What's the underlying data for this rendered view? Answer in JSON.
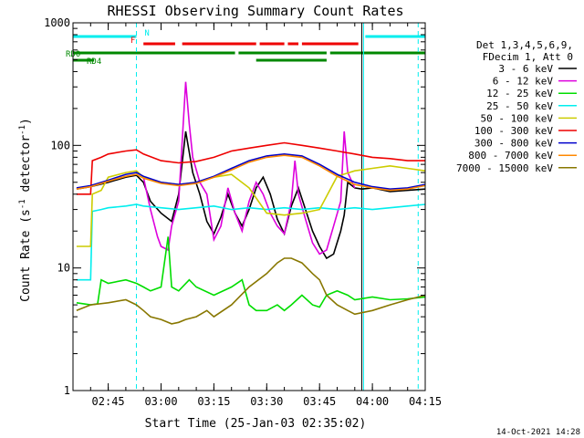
{
  "chart_data": {
    "type": "line",
    "title": "RHESSI Observing Summary Count Rates",
    "xlabel": "Start Time (25-Jan-03 02:35:02)",
    "ylabel": "Count Rate (s",
    "ylabel_sup": "-1",
    "ylabel_tail": " detector",
    "ylabel_end": ")",
    "yscale": "log",
    "ylim": [
      1,
      1000
    ],
    "xlim_min": [
      0,
      100
    ],
    "x_ticks": [
      {
        "min": 10,
        "label": "02:45"
      },
      {
        "min": 25,
        "label": "03:00"
      },
      {
        "min": 40,
        "label": "03:15"
      },
      {
        "min": 55,
        "label": "03:30"
      },
      {
        "min": 70,
        "label": "03:45"
      },
      {
        "min": 85,
        "label": "04:00"
      },
      {
        "min": 100,
        "label": "04:15"
      }
    ],
    "y_ticks": [
      {
        "value": 1,
        "label": "1"
      },
      {
        "value": 10,
        "label": "10"
      },
      {
        "value": 100,
        "label": "100"
      },
      {
        "value": 1000,
        "label": "1000"
      }
    ],
    "legend_header": [
      "Det 1,3,4,5,6,9,",
      "FDecim 1, Att 0"
    ],
    "legend_position": "top-right outside",
    "series": [
      {
        "name": "3 - 6 keV",
        "color": "#000000",
        "x": [
          1,
          5,
          10,
          15,
          18,
          20,
          22,
          25,
          28,
          30,
          32,
          34,
          36,
          38,
          40,
          42,
          44,
          46,
          48,
          50,
          52,
          54,
          56,
          58,
          60,
          62,
          64,
          66,
          68,
          70,
          72,
          74,
          76,
          77,
          78,
          80,
          82,
          85,
          90,
          95,
          100
        ],
        "values": [
          44,
          46,
          50,
          55,
          57,
          50,
          35,
          28,
          24,
          40,
          130,
          60,
          40,
          24,
          19,
          26,
          40,
          28,
          22,
          30,
          45,
          55,
          40,
          25,
          19,
          32,
          45,
          30,
          20,
          15,
          12,
          13,
          20,
          27,
          50,
          45,
          44,
          45,
          42,
          43,
          44
        ]
      },
      {
        "name": "6 - 12 keV",
        "color": "#dd00dd",
        "x": [
          20,
          22,
          24,
          25,
          27,
          28,
          30,
          32,
          33,
          34,
          36,
          38,
          40,
          42,
          44,
          46,
          48,
          50,
          52,
          54,
          56,
          58,
          60,
          62,
          63,
          64,
          66,
          68,
          70,
          72,
          74,
          76,
          77,
          78,
          80
        ],
        "values": [
          55,
          30,
          18,
          15,
          14,
          22,
          35,
          330,
          150,
          80,
          50,
          40,
          17,
          22,
          45,
          28,
          20,
          35,
          50,
          40,
          28,
          22,
          19,
          35,
          75,
          40,
          25,
          16,
          13,
          14,
          22,
          35,
          130,
          60,
          45
        ]
      },
      {
        "name": "12 - 25 keV",
        "color": "#00dd00",
        "x": [
          1,
          5,
          7,
          8,
          10,
          15,
          18,
          20,
          22,
          25,
          27,
          28,
          30,
          33,
          35,
          40,
          45,
          48,
          50,
          52,
          55,
          58,
          60,
          62,
          65,
          68,
          70,
          72,
          75,
          78,
          80,
          85,
          90,
          95,
          100
        ],
        "values": [
          5.2,
          5.0,
          5.1,
          8,
          7.5,
          8,
          7.5,
          7,
          6.5,
          7,
          18,
          7,
          6.5,
          8,
          7,
          6,
          7,
          8,
          5,
          4.5,
          4.5,
          5,
          4.5,
          5,
          6,
          5,
          4.8,
          6,
          6.5,
          6,
          5.5,
          5.8,
          5.5,
          5.6,
          5.8
        ]
      },
      {
        "name": "25 - 50 keV",
        "color": "#00eeee",
        "x": [
          1,
          5,
          5.5,
          8,
          10,
          15,
          18,
          20,
          25,
          30,
          35,
          40,
          45,
          50,
          55,
          60,
          65,
          70,
          75,
          80,
          85,
          90,
          95,
          100
        ],
        "values": [
          8,
          8,
          29,
          30,
          31,
          32,
          33,
          32,
          31,
          30,
          31,
          32,
          30,
          31,
          30,
          31,
          30,
          31,
          30,
          31,
          30,
          31,
          32,
          33
        ]
      },
      {
        "name": "50 - 100 keV",
        "color": "#cccc00",
        "x": [
          1,
          5,
          5.5,
          8,
          10,
          15,
          18,
          20,
          25,
          30,
          35,
          40,
          45,
          50,
          55,
          60,
          65,
          70,
          75,
          80,
          85,
          90,
          95,
          100
        ],
        "values": [
          15,
          15,
          40,
          43,
          55,
          60,
          62,
          55,
          50,
          48,
          50,
          55,
          58,
          45,
          28,
          27,
          28,
          30,
          56,
          62,
          65,
          68,
          65,
          62
        ]
      },
      {
        "name": "100 - 300 keV",
        "color": "#ee0000",
        "x": [
          1,
          5,
          5.5,
          8,
          10,
          15,
          18,
          20,
          25,
          30,
          35,
          40,
          45,
          50,
          55,
          60,
          65,
          70,
          75,
          80,
          85,
          90,
          95,
          100
        ],
        "values": [
          40,
          40,
          75,
          80,
          85,
          90,
          92,
          85,
          75,
          72,
          74,
          80,
          90,
          95,
          100,
          105,
          100,
          95,
          90,
          85,
          80,
          78,
          75,
          75
        ]
      },
      {
        "name": "300 - 800 keV",
        "color": "#0000cc",
        "x": [
          1,
          5,
          10,
          15,
          18,
          20,
          25,
          30,
          35,
          40,
          45,
          50,
          55,
          60,
          65,
          70,
          75,
          80,
          85,
          90,
          95,
          100
        ],
        "values": [
          45,
          47,
          52,
          58,
          60,
          56,
          50,
          48,
          50,
          56,
          65,
          75,
          82,
          85,
          82,
          70,
          58,
          50,
          46,
          44,
          45,
          48
        ]
      },
      {
        "name": "800 - 7000 keV",
        "color": "#ff8800",
        "x": [
          1,
          5,
          10,
          15,
          18,
          20,
          25,
          30,
          35,
          40,
          45,
          50,
          55,
          60,
          65,
          70,
          75,
          80,
          85,
          90,
          95,
          100
        ],
        "values": [
          44,
          46,
          51,
          56,
          58,
          54,
          49,
          47,
          49,
          55,
          63,
          73,
          80,
          83,
          80,
          68,
          56,
          48,
          45,
          43,
          44,
          47
        ]
      },
      {
        "name": "7000 - 15000 keV",
        "color": "#887700",
        "x": [
          1,
          5,
          10,
          15,
          18,
          20,
          22,
          25,
          28,
          30,
          32,
          35,
          38,
          40,
          45,
          50,
          55,
          58,
          60,
          62,
          65,
          68,
          70,
          72,
          75,
          78,
          80,
          85,
          90,
          95,
          100
        ],
        "values": [
          4.5,
          5,
          5.2,
          5.5,
          5,
          4.5,
          4,
          3.8,
          3.5,
          3.6,
          3.8,
          4,
          4.5,
          4,
          5,
          7,
          9,
          11,
          12,
          12,
          11,
          9,
          8,
          6,
          5,
          4.5,
          4.2,
          4.5,
          5,
          5.5,
          6
        ]
      }
    ],
    "status_bars": [
      {
        "name": "N",
        "color": "#00eeee",
        "segments": [
          [
            0,
            18
          ],
          [
            83,
            100
          ]
        ],
        "label_x": 21
      },
      {
        "name": "F",
        "color": "#ee0000",
        "segments": [
          [
            20,
            29
          ],
          [
            31,
            52
          ],
          [
            53,
            60
          ],
          [
            61,
            64
          ],
          [
            65,
            81
          ]
        ],
        "label_x": 17
      },
      {
        "name": "RD0",
        "color": "#008800",
        "segments": [
          [
            0,
            46
          ],
          [
            47,
            72
          ],
          [
            73,
            100
          ]
        ],
        "label_x": -1
      },
      {
        "name": "RD4",
        "color": "#008800",
        "segments": [
          [
            0,
            6
          ],
          [
            52,
            72
          ]
        ],
        "label_x": 6
      }
    ],
    "vlines": [
      {
        "min": 18,
        "color": "#00eeee",
        "style": "dashed"
      },
      {
        "min": 82.5,
        "color": "#00eeee",
        "style": "solid"
      },
      {
        "min": 98,
        "color": "#00eeee",
        "style": "dashed"
      },
      {
        "min": 82,
        "color": "#000000",
        "style": "solid"
      }
    ],
    "footer": "14-Oct-2021 14:28"
  }
}
